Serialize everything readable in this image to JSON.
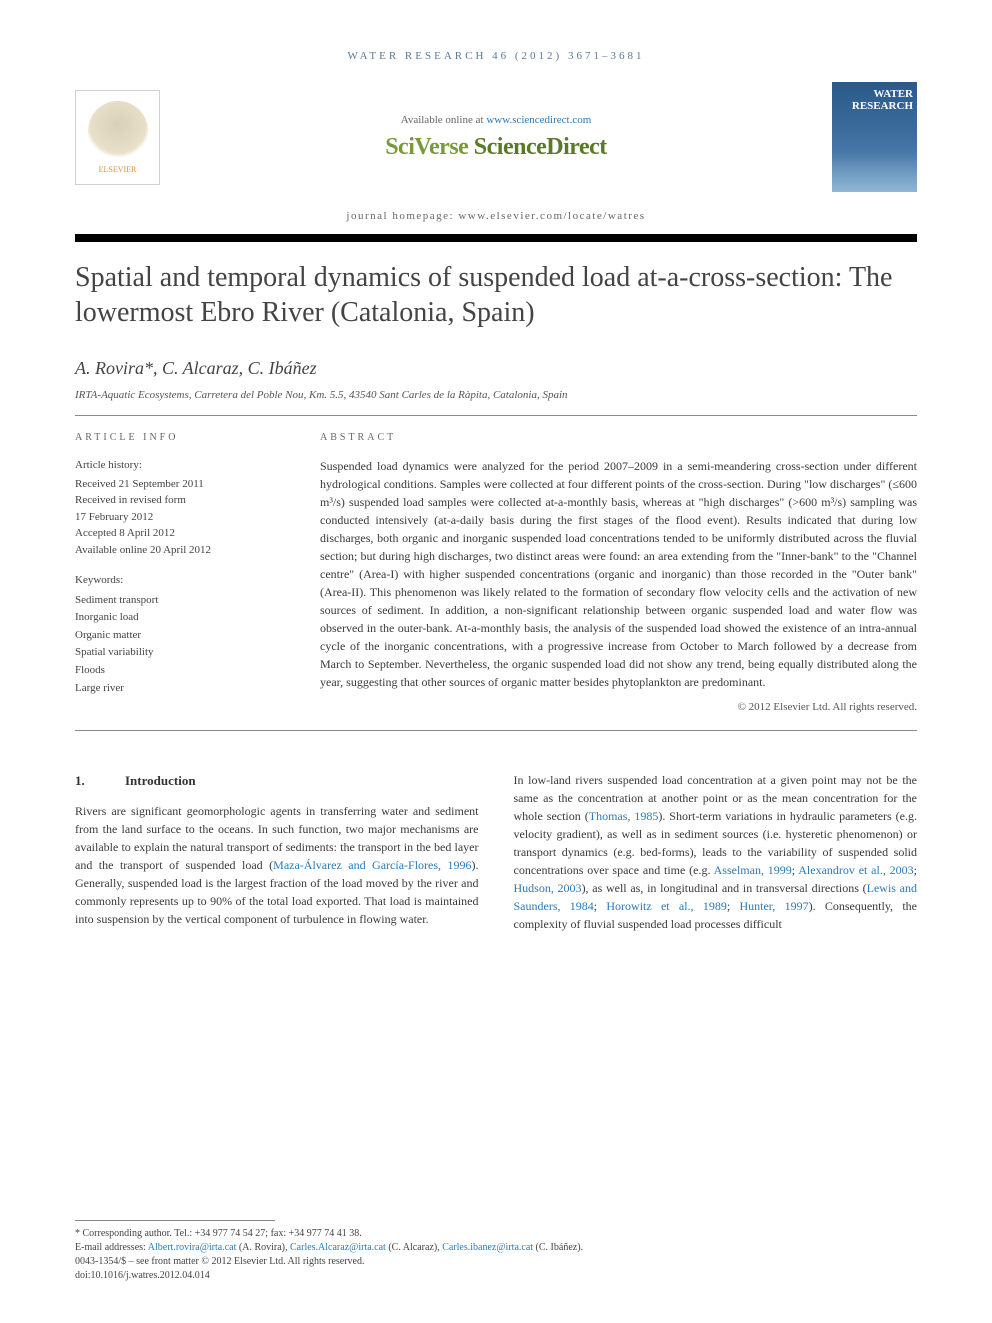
{
  "header": {
    "citation": "WATER RESEARCH 46 (2012) 3671–3681",
    "availableText": "Available online at ",
    "availableLink": "www.sciencedirect.com",
    "brandPrefix": "SciVerse ",
    "brandMain": "ScienceDirect",
    "homepageLabel": "journal homepage: ",
    "homepageUrl": "www.elsevier.com/locate/watres",
    "elsevierLabel": "ELSEVIER",
    "journalCoverLine1": "WATER",
    "journalCoverLine2": "RESEARCH"
  },
  "article": {
    "title": "Spatial and temporal dynamics of suspended load at-a-cross-section: The lowermost Ebro River (Catalonia, Spain)",
    "authors": "A. Rovira*, C. Alcaraz, C. Ibáñez",
    "affiliation": "IRTA-Aquatic Ecosystems, Carretera del Poble Nou, Km. 5.5, 43540 Sant Carles de la Ràpita, Catalonia, Spain"
  },
  "info": {
    "headLabel": "ARTICLE INFO",
    "historyLabel": "Article history:",
    "received": "Received 21 September 2011",
    "revised1": "Received in revised form",
    "revised2": "17 February 2012",
    "accepted": "Accepted 8 April 2012",
    "online": "Available online 20 April 2012",
    "keywordsLabel": "Keywords:",
    "keywords": [
      "Sediment transport",
      "Inorganic load",
      "Organic matter",
      "Spatial variability",
      "Floods",
      "Large river"
    ]
  },
  "abstract": {
    "headLabel": "ABSTRACT",
    "text": "Suspended load dynamics were analyzed for the period 2007–2009 in a semi-meandering cross-section under different hydrological conditions. Samples were collected at four different points of the cross-section. During \"low discharges\" (≤600 m³/s) suspended load samples were collected at-a-monthly basis, whereas at \"high discharges\" (>600 m³/s) sampling was conducted intensively (at-a-daily basis during the first stages of the flood event). Results indicated that during low discharges, both organic and inorganic suspended load concentrations tended to be uniformly distributed across the fluvial section; but during high discharges, two distinct areas were found: an area extending from the \"Inner-bank\" to the \"Channel centre\" (Area-I) with higher suspended concentrations (organic and inorganic) than those recorded in the \"Outer bank\" (Area-II). This phenomenon was likely related to the formation of secondary flow velocity cells and the activation of new sources of sediment. In addition, a non-significant relationship between organic suspended load and water flow was observed in the outer-bank. At-a-monthly basis, the analysis of the suspended load showed the existence of an intra-annual cycle of the inorganic concentrations, with a progressive increase from October to March followed by a decrease from March to September. Nevertheless, the organic suspended load did not show any trend, being equally distributed along the year, suggesting that other sources of organic matter besides phytoplankton are predominant.",
    "copyright": "© 2012 Elsevier Ltd. All rights reserved."
  },
  "body": {
    "sectionNum": "1.",
    "sectionTitle": "Introduction",
    "leftP1a": "Rivers are significant geomorphologic agents in transferring water and sediment from the land surface to the oceans. In such function, two major mechanisms are available to explain the natural transport of sediments: the transport in the bed layer and the transport of suspended load (",
    "leftCite1": "Maza-Álvarez and García-Flores, 1996",
    "leftP1b": "). Generally, suspended load is the largest fraction of the load moved by the river and commonly represents up to 90% of the total load exported. That load is maintained into suspension by the vertical component of turbulence in flowing water.",
    "rightP1a": "In low-land rivers suspended load concentration at a given point may not be the same as the concentration at another point or as the mean concentration for the whole section (",
    "rightCite1": "Thomas, 1985",
    "rightP1b": "). Short-term variations in hydraulic parameters (e.g. velocity gradient), as well as in sediment sources (i.e. hysteretic phenomenon) or transport dynamics (e.g. bed-forms), leads to the variability of suspended solid concentrations over space and time (e.g. ",
    "rightCite2": "Asselman, 1999",
    "rightSep1": "; ",
    "rightCite3": "Alexandrov et al., 2003",
    "rightSep2": "; ",
    "rightCite4": "Hudson, 2003",
    "rightP1c": "), as well as, in longitudinal and in transversal directions (",
    "rightCite5": "Lewis and Saunders, 1984",
    "rightSep3": "; ",
    "rightCite6": "Horowitz et al., 1989",
    "rightSep4": "; ",
    "rightCite7": "Hunter, 1997",
    "rightP1d": "). Consequently, the complexity of fluvial suspended load processes difficult"
  },
  "footer": {
    "corrLabel": "* Corresponding author.",
    "corrContact": " Tel.: +34 977 74 54 27; fax: +34 977 74 41 38.",
    "emailLabel": "E-mail addresses: ",
    "email1": "Albert.rovira@irta.cat",
    "author1": " (A. Rovira), ",
    "email2": "Carles.Alcaraz@irta.cat",
    "author2": " (C. Alcaraz), ",
    "email3": "Carles.ibanez@irta.cat",
    "author3": " (C. Ibáñez).",
    "issn": "0043-1354/$ – see front matter © 2012 Elsevier Ltd. All rights reserved.",
    "doi": "doi:10.1016/j.watres.2012.04.014"
  },
  "colors": {
    "headerText": "#5a7a9a",
    "linkColor": "#2a7ab8",
    "sciverseGreen": "#7a9a3a",
    "ruleBlack": "#000000",
    "bodyText": "#3a3a3a",
    "elsevierOrange": "#e8902a",
    "coverBlue": "#2a5a8a"
  }
}
